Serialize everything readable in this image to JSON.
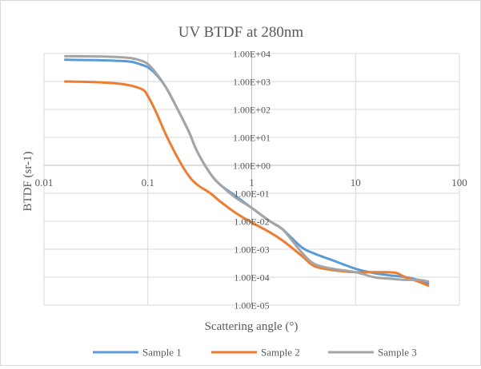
{
  "chart_data": {
    "type": "line",
    "title": "UV BTDF at 280nm",
    "xlabel": "Scattering angle (°)",
    "ylabel": "BTDF (sr-1)",
    "x_scale": "log",
    "y_scale": "log",
    "xlim": [
      0.01,
      100
    ],
    "ylim": [
      1e-05,
      10000
    ],
    "x_ticks": [
      0.01,
      0.1,
      1,
      10,
      100
    ],
    "x_tick_labels": [
      "0.01",
      "0.1",
      "1",
      "10",
      "100"
    ],
    "y_ticks": [
      1e-05,
      0.0001,
      0.001,
      0.01,
      0.1,
      1,
      10,
      100,
      1000,
      10000
    ],
    "y_tick_labels": [
      "1.00E-05",
      "1.00E-04",
      "1.00E-03",
      "1.00E-02",
      "1.00E-01",
      "1.00E+00",
      "1.00E+01",
      "1.00E+02",
      "1.00E+03",
      "1.00E+04"
    ],
    "grid": true,
    "legend_position": "bottom",
    "series": [
      {
        "name": "Sample 1",
        "color": "#5b9bd5",
        "x": [
          0.016,
          0.03,
          0.05,
          0.07,
          0.09,
          0.1,
          0.12,
          0.15,
          0.2,
          0.25,
          0.3,
          0.4,
          0.5,
          0.7,
          1,
          1.5,
          2,
          3,
          4,
          6,
          10,
          15,
          20,
          30,
          40,
          50
        ],
        "y": [
          6000,
          5800,
          5500,
          5000,
          3800,
          3200,
          1800,
          600,
          80,
          15,
          3,
          0.5,
          0.2,
          0.08,
          0.03,
          0.01,
          0.005,
          0.0012,
          0.0007,
          0.0004,
          0.0002,
          0.00014,
          0.00012,
          0.0001,
          8e-05,
          6e-05
        ]
      },
      {
        "name": "Sample 2",
        "color": "#ed7d31",
        "x": [
          0.016,
          0.03,
          0.05,
          0.07,
          0.09,
          0.1,
          0.12,
          0.15,
          0.2,
          0.25,
          0.3,
          0.4,
          0.5,
          0.7,
          1,
          1.5,
          2,
          3,
          4,
          6,
          10,
          15,
          20,
          25,
          30,
          40,
          50
        ],
        "y": [
          1000,
          950,
          850,
          700,
          500,
          300,
          80,
          12,
          1.5,
          0.4,
          0.2,
          0.1,
          0.05,
          0.02,
          0.009,
          0.004,
          0.002,
          0.0006,
          0.00025,
          0.00018,
          0.00015,
          0.00015,
          0.00015,
          0.00014,
          0.0001,
          7e-05,
          5e-05
        ]
      },
      {
        "name": "Sample 3",
        "color": "#a5a5a5",
        "x": [
          0.016,
          0.03,
          0.05,
          0.07,
          0.09,
          0.1,
          0.12,
          0.15,
          0.2,
          0.25,
          0.3,
          0.4,
          0.5,
          0.7,
          1,
          1.5,
          2,
          3,
          4,
          6,
          10,
          15,
          20,
          30,
          40,
          50
        ],
        "y": [
          8000,
          7900,
          7500,
          6800,
          5200,
          4200,
          2000,
          600,
          80,
          15,
          3,
          0.5,
          0.2,
          0.07,
          0.03,
          0.01,
          0.005,
          0.0008,
          0.0003,
          0.0002,
          0.00015,
          0.0001,
          9e-05,
          8e-05,
          8e-05,
          7e-05
        ]
      }
    ]
  }
}
